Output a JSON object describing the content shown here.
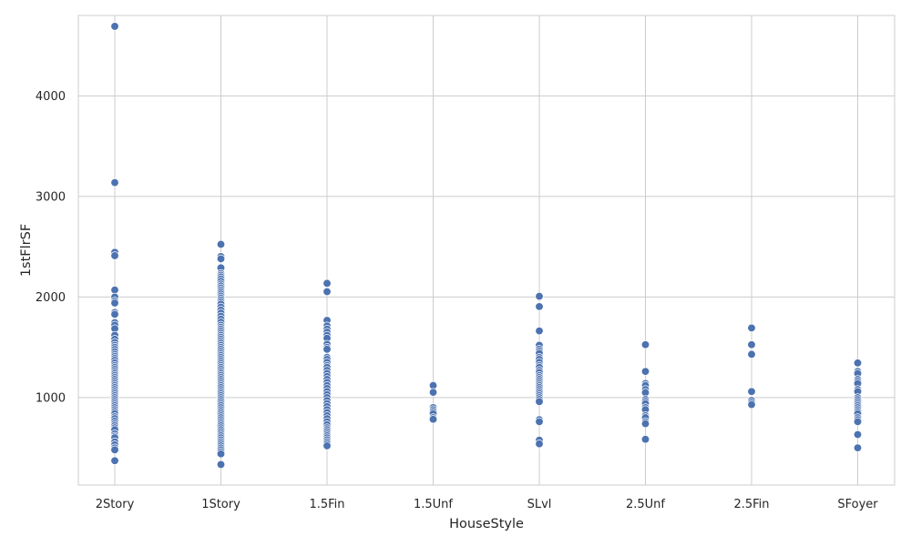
{
  "colors": {
    "point": "#4c72b0",
    "grid": "#cccccc",
    "background": "#ffffff"
  },
  "chart_data": {
    "type": "scatter",
    "title": "",
    "xlabel": "HouseStyle",
    "ylabel": "1stFlrSF",
    "categories": [
      "2Story",
      "1Story",
      "1.5Fin",
      "1.5Unf",
      "SLvl",
      "2.5Unf",
      "2.5Fin",
      "SFoyer"
    ],
    "ylim": [
      130,
      4800
    ],
    "yticks": [
      1000,
      2000,
      3000,
      4000
    ],
    "grid": true,
    "legend": "none",
    "points": {
      "2Story": [
        4692,
        3138,
        2444,
        2411,
        2070,
        2000,
        1959,
        1940,
        1846,
        1828,
        1745,
        1720,
        1685,
        1620,
        1580,
        1548,
        1520,
        1500,
        1478,
        1455,
        1430,
        1410,
        1390,
        1370,
        1345,
        1320,
        1300,
        1280,
        1260,
        1240,
        1220,
        1200,
        1180,
        1160,
        1140,
        1120,
        1100,
        1080,
        1060,
        1040,
        1020,
        1000,
        980,
        960,
        940,
        920,
        900,
        880,
        860,
        840,
        810,
        790,
        764,
        740,
        720,
        700,
        680,
        640,
        616,
        600,
        560,
        530,
        500,
        480,
        372
      ],
      "1Story": [
        2524,
        2402,
        2380,
        2290,
        2234,
        2217,
        2200,
        2180,
        2156,
        2130,
        2110,
        2090,
        2070,
        2050,
        2030,
        2010,
        1990,
        1970,
        1950,
        1930,
        1900,
        1870,
        1840,
        1810,
        1780,
        1750,
        1720,
        1700,
        1680,
        1660,
        1640,
        1620,
        1600,
        1580,
        1560,
        1540,
        1520,
        1500,
        1480,
        1460,
        1440,
        1420,
        1400,
        1380,
        1360,
        1340,
        1320,
        1300,
        1280,
        1260,
        1240,
        1220,
        1200,
        1180,
        1160,
        1140,
        1120,
        1100,
        1080,
        1060,
        1040,
        1020,
        1000,
        980,
        960,
        940,
        920,
        900,
        880,
        860,
        840,
        820,
        800,
        780,
        760,
        740,
        720,
        700,
        680,
        660,
        640,
        620,
        600,
        580,
        560,
        540,
        520,
        500,
        480,
        460,
        440,
        334
      ],
      "1.5Fin": [
        2136,
        2053,
        1768,
        1712,
        1680,
        1650,
        1620,
        1590,
        1530,
        1500,
        1480,
        1400,
        1380,
        1350,
        1320,
        1300,
        1270,
        1240,
        1210,
        1180,
        1150,
        1120,
        1090,
        1060,
        1030,
        1000,
        970,
        940,
        910,
        880,
        850,
        820,
        790,
        760,
        730,
        700,
        680,
        660,
        640,
        620,
        600,
        580,
        560,
        540,
        520
      ],
      "1.5Unf": [
        1120,
        1052,
        900,
        880,
        860,
        840,
        800,
        784
      ],
      "SLvl": [
        2007,
        1905,
        1663,
        1520,
        1480,
        1460,
        1440,
        1400,
        1380,
        1350,
        1320,
        1300,
        1270,
        1250,
        1220,
        1200,
        1180,
        1160,
        1140,
        1120,
        1100,
        1080,
        1060,
        1040,
        1020,
        1000,
        980,
        960,
        780,
        760,
        576,
        540
      ],
      "2.5Unf": [
        1526,
        1260,
        1140,
        1120,
        1080,
        1050,
        980,
        960,
        940,
        900,
        880,
        820,
        800,
        760,
        740,
        585
      ],
      "2.5Fin": [
        1692,
        1526,
        1430,
        1060,
        970,
        950,
        930
      ],
      "SFoyer": [
        1344,
        1260,
        1240,
        1180,
        1160,
        1140,
        1080,
        1060,
        1000,
        980,
        960,
        940,
        920,
        900,
        880,
        860,
        840,
        800,
        780,
        760,
        632,
        500
      ]
    }
  }
}
